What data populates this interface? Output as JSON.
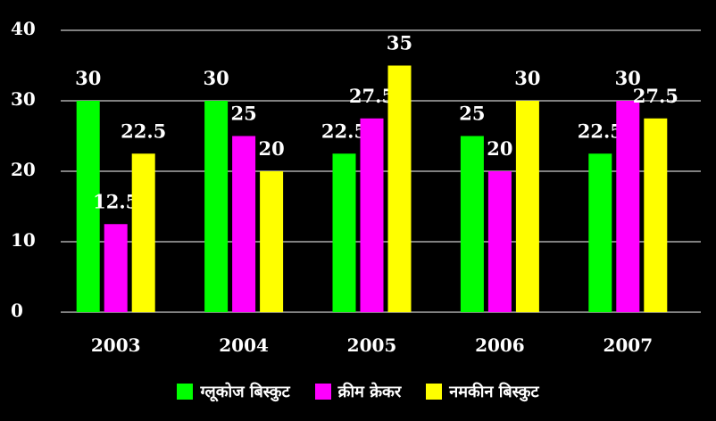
{
  "chart_data": {
    "type": "bar",
    "categories": [
      "2003",
      "2004",
      "2005",
      "2006",
      "2007"
    ],
    "series": [
      {
        "name": "ग्लूकोज बिस्कुट",
        "color": "#00ff00",
        "values": [
          30,
          30,
          22.5,
          25,
          22.5
        ]
      },
      {
        "name": "क्रीम क्रेकर",
        "color": "#ff00ff",
        "values": [
          12.5,
          25,
          27.5,
          20,
          30
        ]
      },
      {
        "name": "नमकीन बिस्कुट",
        "color": "#ffff00",
        "values": [
          22.5,
          20,
          35,
          30,
          27.5
        ]
      }
    ],
    "ylim": [
      0,
      40
    ],
    "yticks": [
      "0",
      "10",
      "20",
      "30",
      "40"
    ],
    "data_labels": [
      [
        "30",
        "30",
        "22.5",
        "25",
        "22.5"
      ],
      [
        "12.5",
        "25",
        "27.5",
        "20",
        "30"
      ],
      [
        "22.5",
        "20",
        "35",
        "30",
        "27.5"
      ]
    ],
    "grid": true,
    "legend_position": "bottom",
    "background": "#000000",
    "gridline_color": "#ffffff"
  }
}
